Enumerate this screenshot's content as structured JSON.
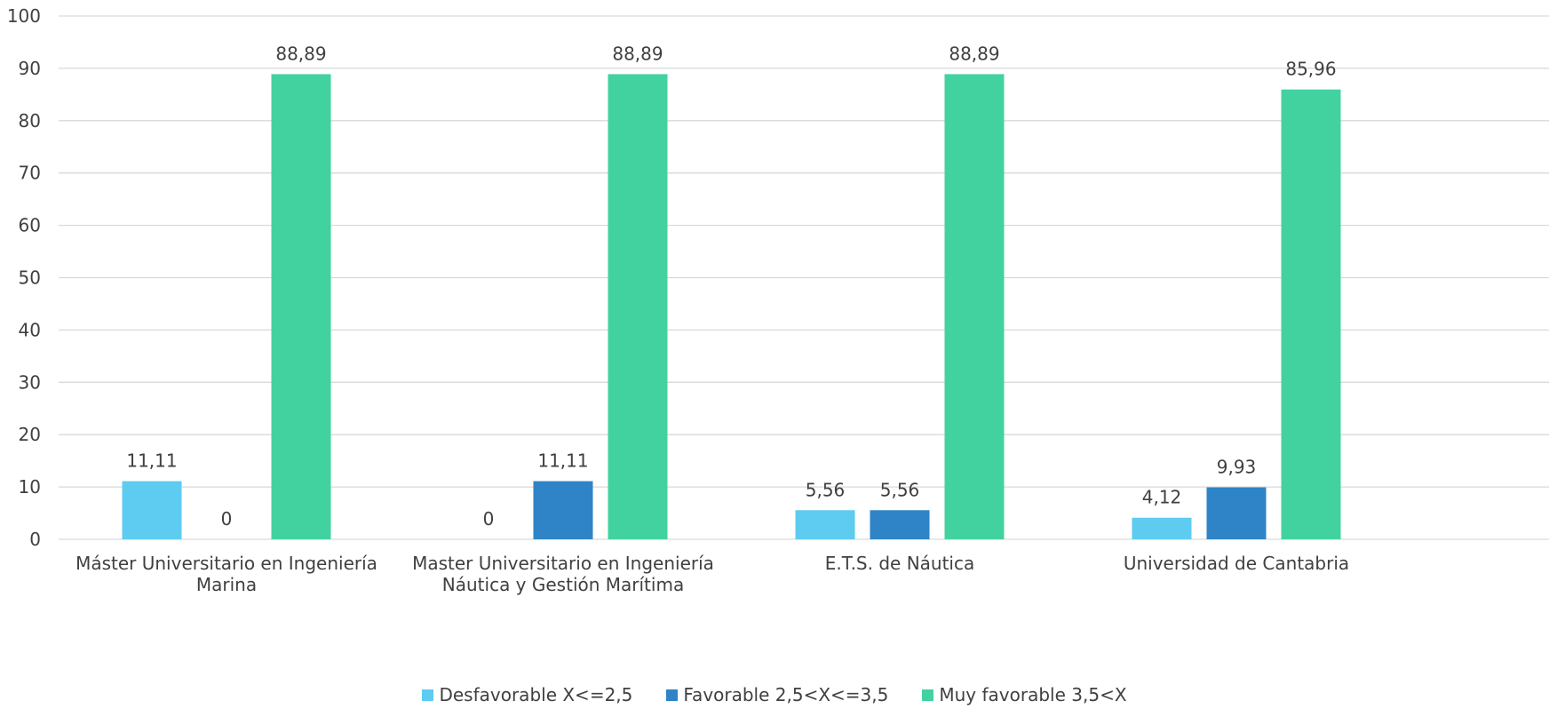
{
  "chart_data": {
    "type": "bar",
    "title": "",
    "xlabel": "",
    "ylabel": "",
    "ylim": [
      0,
      100
    ],
    "yticks": [
      "0",
      "10",
      "20",
      "30",
      "40",
      "50",
      "60",
      "70",
      "80",
      "90",
      "100"
    ],
    "grid": true,
    "legend_position": "bottom",
    "categories": [
      [
        "Máster Universitario en Ingeniería",
        "Marina"
      ],
      [
        "Master Universitario en Ingeniería",
        "Náutica y Gestión Marítima"
      ],
      [
        "E.T.S. de Náutica"
      ],
      [
        "Universidad de Cantabria"
      ]
    ],
    "series": [
      {
        "name": "Desfavorable X<=2,5",
        "color": "#5ecbf0",
        "values": [
          11.11,
          0,
          5.56,
          4.12
        ],
        "labels": [
          "11,11",
          "0",
          "5,56",
          "4,12"
        ]
      },
      {
        "name": "Favorable 2,5<X<=3,5",
        "color": "#2e84c6",
        "values": [
          0,
          11.11,
          5.56,
          9.93
        ],
        "labels": [
          "0",
          "11,11",
          "5,56",
          "9,93"
        ]
      },
      {
        "name": "Muy favorable 3,5<X",
        "color": "#42d2a0",
        "values": [
          88.89,
          88.89,
          88.89,
          85.96
        ],
        "labels": [
          "88,89",
          "88,89",
          "88,89",
          "85,96"
        ]
      }
    ]
  }
}
